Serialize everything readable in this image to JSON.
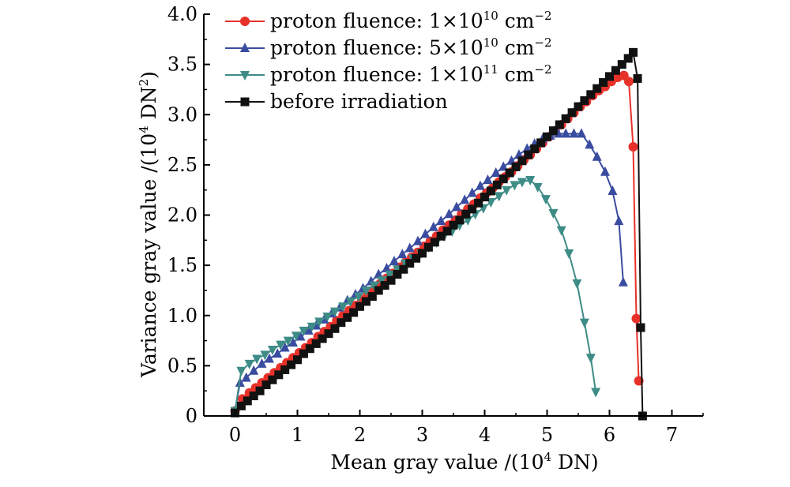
{
  "chart_data": {
    "type": "line",
    "title": "",
    "xlabel_main": "Mean gray value /(10",
    "xlabel_exp": "4",
    "xlabel_end": " DN)",
    "ylabel_main": "Variance gray value /(10",
    "ylabel_exp": "4",
    "ylabel_mid": " DN",
    "ylabel_exp2": "2",
    "ylabel_end": ")",
    "xlim": [
      -0.5,
      7.5
    ],
    "ylim": [
      0,
      4.0
    ],
    "xticks": [
      0,
      1,
      2,
      3,
      4,
      5,
      6,
      7
    ],
    "xtick_labels": [
      "0",
      "1",
      "2",
      "3",
      "4",
      "5",
      "6",
      "7"
    ],
    "yticks": [
      0,
      0.5,
      1.0,
      1.5,
      2.0,
      2.5,
      3.0,
      3.5,
      4.0
    ],
    "ytick_labels": [
      "0",
      "0.5",
      "1.0",
      "1.5",
      "2.0",
      "2.5",
      "3.0",
      "3.5",
      "4.0"
    ],
    "legend_position": "top-left",
    "series": [
      {
        "name": "proton fluence: 1×10¹⁰ cm⁻²",
        "legend_main": "proton fluence: 1",
        "legend_times": "×",
        "legend_base": "10",
        "legend_exp": "10",
        "legend_unit": " cm",
        "legend_unit_exp": "−2",
        "color": "#e8312a",
        "marker": "circle",
        "x": [
          0.0,
          0.12,
          0.23,
          0.33,
          0.43,
          0.53,
          0.63,
          0.73,
          0.83,
          0.93,
          1.03,
          1.13,
          1.23,
          1.33,
          1.43,
          1.53,
          1.63,
          1.73,
          1.83,
          1.93,
          2.03,
          2.13,
          2.23,
          2.33,
          2.43,
          2.53,
          2.63,
          2.73,
          2.83,
          2.93,
          3.03,
          3.13,
          3.23,
          3.33,
          3.43,
          3.53,
          3.63,
          3.73,
          3.83,
          3.93,
          4.03,
          4.13,
          4.23,
          4.33,
          4.43,
          4.53,
          4.63,
          4.73,
          4.83,
          4.93,
          5.03,
          5.13,
          5.23,
          5.33,
          5.43,
          5.53,
          5.63,
          5.73,
          5.83,
          5.93,
          6.03,
          6.13,
          6.23,
          6.31,
          6.38,
          6.43,
          6.47
        ],
        "y": [
          0.05,
          0.17,
          0.23,
          0.28,
          0.33,
          0.38,
          0.43,
          0.48,
          0.53,
          0.58,
          0.63,
          0.68,
          0.73,
          0.79,
          0.84,
          0.89,
          0.95,
          1.0,
          1.05,
          1.1,
          1.16,
          1.21,
          1.26,
          1.32,
          1.37,
          1.42,
          1.48,
          1.53,
          1.58,
          1.63,
          1.69,
          1.74,
          1.79,
          1.85,
          1.9,
          1.95,
          2.01,
          2.06,
          2.11,
          2.17,
          2.22,
          2.27,
          2.33,
          2.38,
          2.43,
          2.49,
          2.55,
          2.6,
          2.66,
          2.72,
          2.78,
          2.84,
          2.9,
          2.96,
          3.02,
          3.08,
          3.13,
          3.19,
          3.24,
          3.28,
          3.33,
          3.37,
          3.39,
          3.33,
          2.68,
          0.97,
          0.35
        ]
      },
      {
        "name": "proton fluence: 5×10¹⁰ cm⁻²",
        "legend_main": "proton fluence: 5",
        "legend_times": "×",
        "legend_base": "10",
        "legend_exp": "10",
        "legend_unit": " cm",
        "legend_unit_exp": "−2",
        "color": "#3a4ca0",
        "marker": "triangle-up",
        "x": [
          0.0,
          0.08,
          0.18,
          0.3,
          0.43,
          0.55,
          0.68,
          0.8,
          0.93,
          1.05,
          1.18,
          1.3,
          1.43,
          1.55,
          1.68,
          1.8,
          1.93,
          2.05,
          2.18,
          2.3,
          2.43,
          2.55,
          2.68,
          2.8,
          2.93,
          3.05,
          3.18,
          3.3,
          3.43,
          3.55,
          3.68,
          3.8,
          3.93,
          4.05,
          4.18,
          4.3,
          4.43,
          4.55,
          4.68,
          4.8,
          4.93,
          5.05,
          5.18,
          5.3,
          5.43,
          5.55,
          5.68,
          5.8,
          5.93,
          6.05,
          6.15,
          6.22
        ],
        "y": [
          0.05,
          0.33,
          0.38,
          0.45,
          0.52,
          0.57,
          0.62,
          0.68,
          0.73,
          0.79,
          0.85,
          0.9,
          0.96,
          1.02,
          1.08,
          1.15,
          1.21,
          1.27,
          1.34,
          1.41,
          1.47,
          1.54,
          1.61,
          1.67,
          1.74,
          1.81,
          1.88,
          1.94,
          2.01,
          2.08,
          2.15,
          2.22,
          2.29,
          2.35,
          2.42,
          2.48,
          2.54,
          2.6,
          2.66,
          2.71,
          2.76,
          2.79,
          2.81,
          2.81,
          2.81,
          2.81,
          2.7,
          2.58,
          2.43,
          2.24,
          1.94,
          1.33
        ]
      },
      {
        "name": "proton fluence: 1×10¹¹ cm⁻²",
        "legend_main": "proton fluence: 1",
        "legend_times": "×",
        "legend_base": "10",
        "legend_exp": "11",
        "legend_unit": " cm",
        "legend_unit_exp": "−2",
        "color": "#3e8c86",
        "marker": "triangle-down",
        "x": [
          0.0,
          0.1,
          0.23,
          0.35,
          0.48,
          0.6,
          0.73,
          0.85,
          0.98,
          1.1,
          1.23,
          1.35,
          1.48,
          1.6,
          1.73,
          1.85,
          1.98,
          2.1,
          2.23,
          2.35,
          2.48,
          2.6,
          2.73,
          2.85,
          2.98,
          3.1,
          3.23,
          3.35,
          3.48,
          3.6,
          3.73,
          3.85,
          3.98,
          4.1,
          4.23,
          4.35,
          4.48,
          4.6,
          4.73,
          4.85,
          4.98,
          5.1,
          5.23,
          5.35,
          5.48,
          5.6,
          5.7,
          5.78
        ],
        "y": [
          0.05,
          0.45,
          0.52,
          0.57,
          0.61,
          0.66,
          0.71,
          0.75,
          0.8,
          0.85,
          0.89,
          0.94,
          0.99,
          1.04,
          1.09,
          1.14,
          1.19,
          1.25,
          1.3,
          1.35,
          1.41,
          1.46,
          1.52,
          1.57,
          1.62,
          1.68,
          1.73,
          1.79,
          1.84,
          1.9,
          1.95,
          2.01,
          2.07,
          2.13,
          2.19,
          2.25,
          2.3,
          2.33,
          2.35,
          2.28,
          2.16,
          2.02,
          1.85,
          1.62,
          1.32,
          0.93,
          0.58,
          0.24
        ]
      },
      {
        "name": "before irradiation",
        "legend_main": "before irradiation",
        "color": "#111111",
        "marker": "square",
        "x": [
          0.0,
          0.1,
          0.2,
          0.3,
          0.4,
          0.5,
          0.6,
          0.7,
          0.8,
          0.9,
          1.0,
          1.1,
          1.2,
          1.3,
          1.4,
          1.5,
          1.6,
          1.7,
          1.8,
          1.9,
          2.0,
          2.1,
          2.2,
          2.3,
          2.4,
          2.5,
          2.6,
          2.7,
          2.8,
          2.9,
          3.0,
          3.1,
          3.2,
          3.3,
          3.4,
          3.5,
          3.6,
          3.7,
          3.8,
          3.9,
          4.0,
          4.1,
          4.2,
          4.3,
          4.4,
          4.5,
          4.6,
          4.7,
          4.8,
          4.9,
          5.0,
          5.1,
          5.2,
          5.3,
          5.4,
          5.5,
          5.6,
          5.7,
          5.8,
          5.9,
          6.0,
          6.1,
          6.2,
          6.3,
          6.38,
          6.45,
          6.5,
          6.53
        ],
        "y": [
          0.03,
          0.1,
          0.15,
          0.2,
          0.25,
          0.31,
          0.36,
          0.41,
          0.46,
          0.51,
          0.56,
          0.62,
          0.67,
          0.72,
          0.77,
          0.82,
          0.87,
          0.93,
          0.98,
          1.03,
          1.09,
          1.14,
          1.19,
          1.25,
          1.3,
          1.35,
          1.41,
          1.46,
          1.52,
          1.57,
          1.62,
          1.68,
          1.73,
          1.79,
          1.84,
          1.9,
          1.95,
          2.01,
          2.06,
          2.12,
          2.18,
          2.24,
          2.3,
          2.36,
          2.42,
          2.48,
          2.54,
          2.6,
          2.66,
          2.72,
          2.78,
          2.84,
          2.9,
          2.96,
          3.02,
          3.08,
          3.14,
          3.2,
          3.26,
          3.32,
          3.38,
          3.44,
          3.5,
          3.56,
          3.62,
          3.36,
          0.88,
          0.0
        ]
      }
    ]
  }
}
